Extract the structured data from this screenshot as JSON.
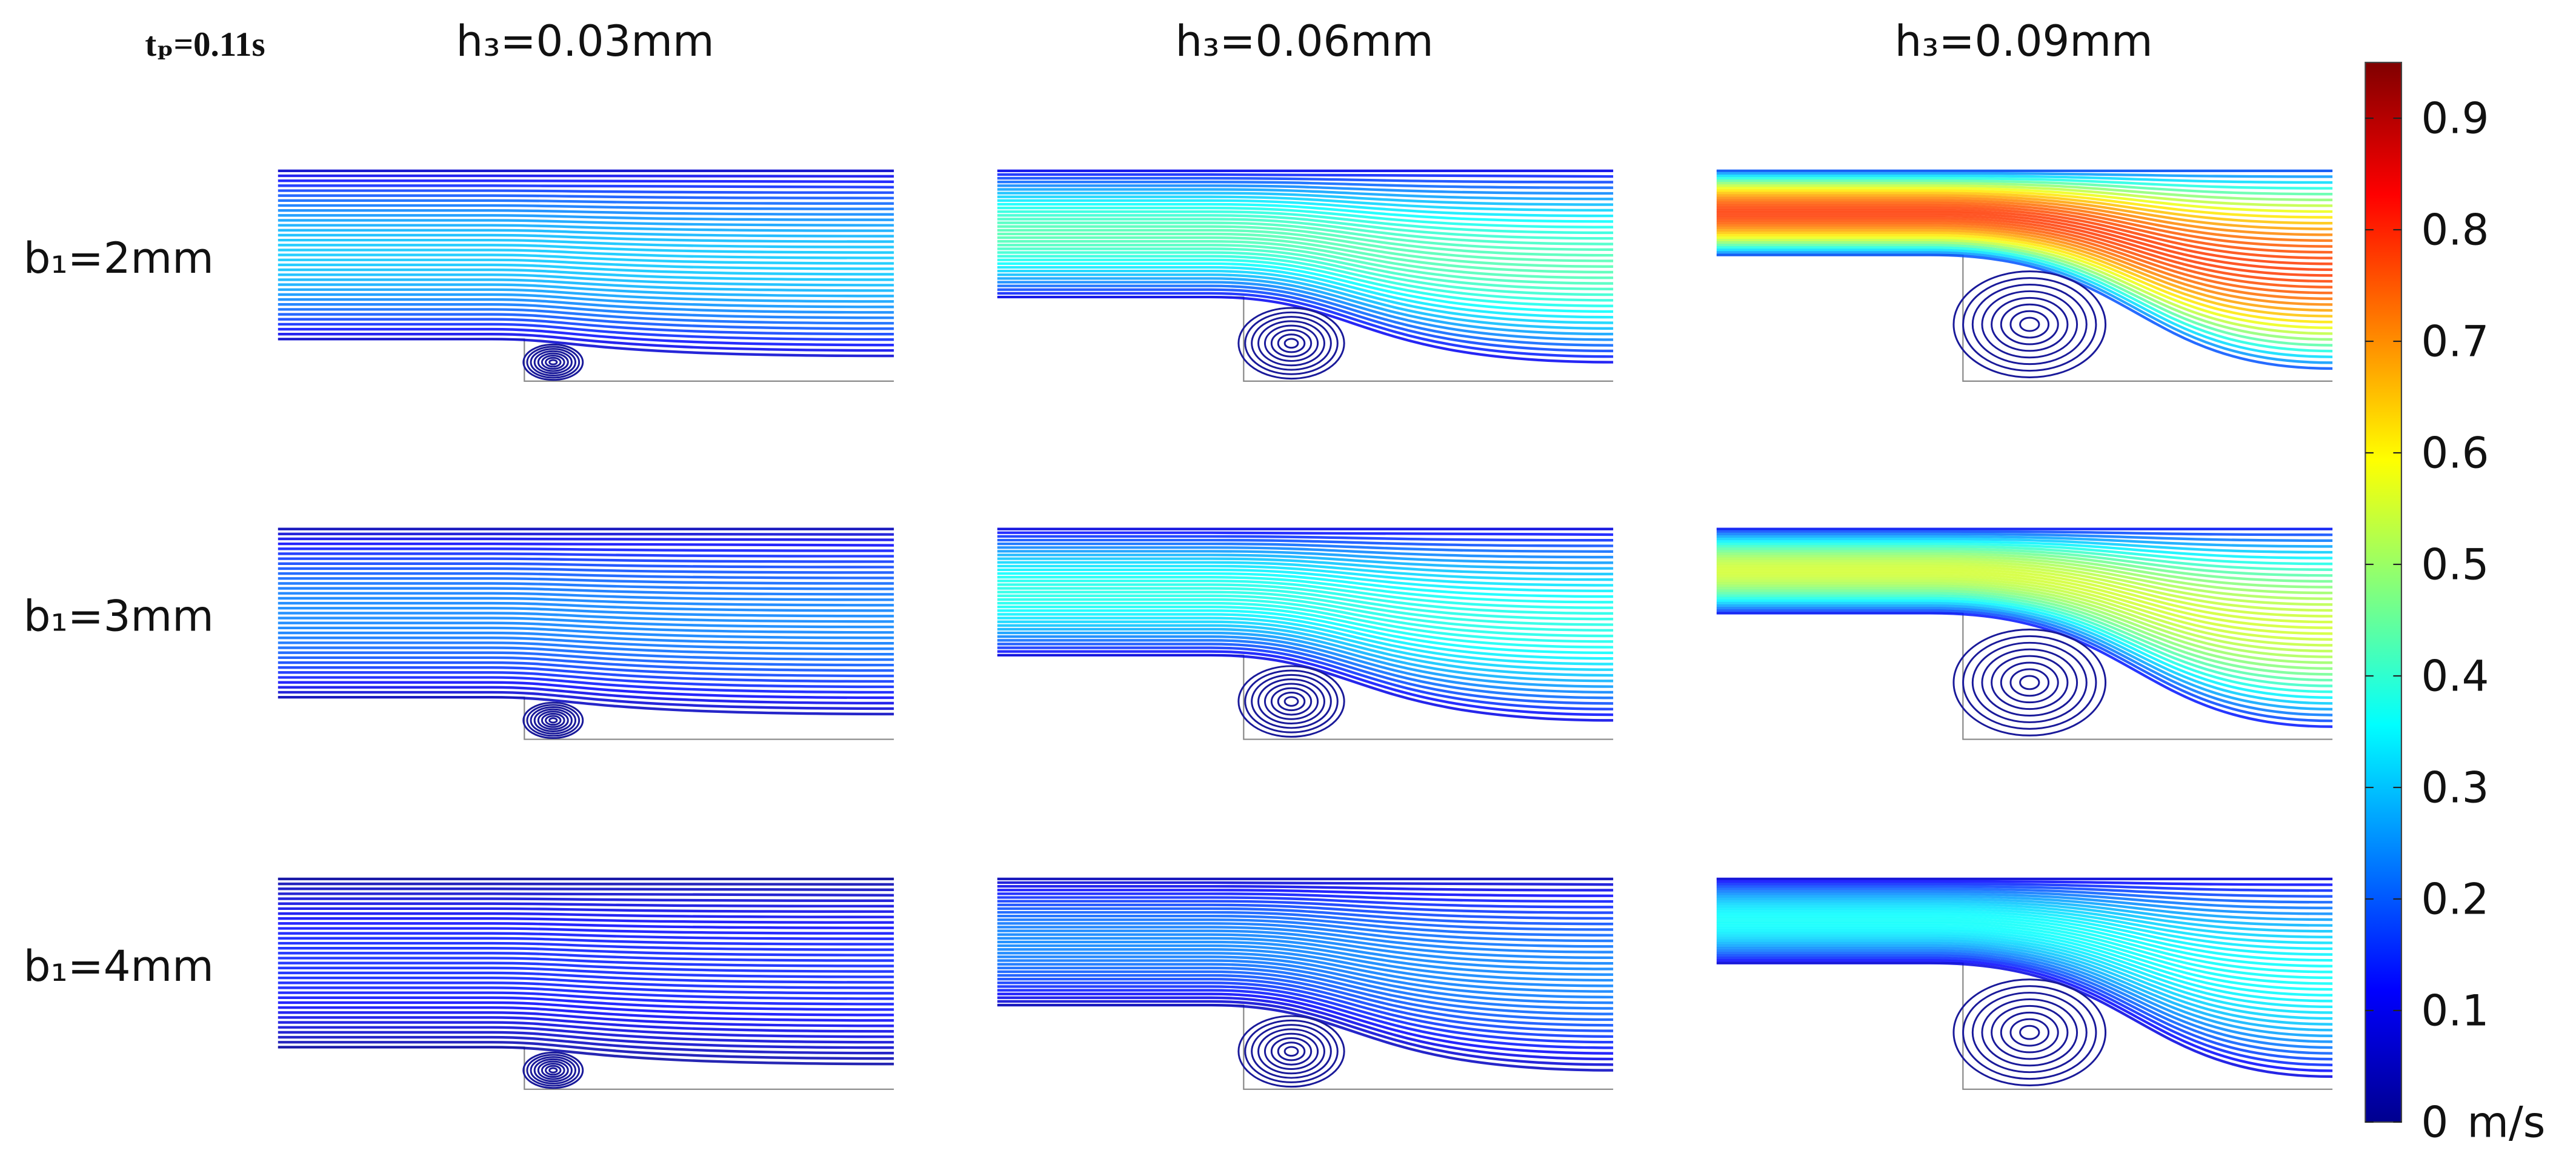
{
  "header": {
    "time_label": "tₚ=0.11s"
  },
  "columns": [
    "h₃=0.03mm",
    "h₃=0.06mm",
    "h₃=0.09mm"
  ],
  "rows": [
    "b₁=2mm",
    "b₁=3mm",
    "b₁=4mm"
  ],
  "colorbar": {
    "lim": [
      0,
      0.95
    ],
    "ticks": [
      0,
      0.1,
      0.2,
      0.3,
      0.4,
      0.5,
      0.6,
      0.7,
      0.8,
      0.9
    ],
    "unit": "m/s"
  }
}
